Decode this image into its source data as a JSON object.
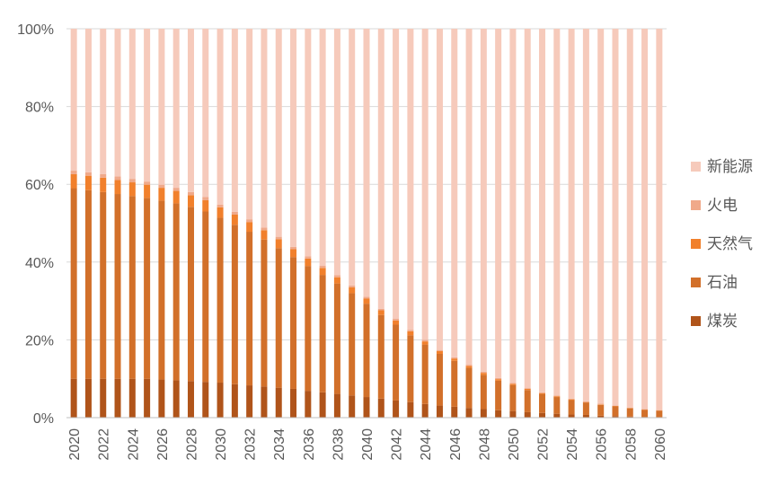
{
  "chart_data": {
    "type": "bar",
    "stacked": true,
    "percent": true,
    "ylim": [
      0,
      100
    ],
    "y_ticks": [
      "0%",
      "20%",
      "40%",
      "60%",
      "80%",
      "100%"
    ],
    "y_tick_values": [
      0,
      20,
      40,
      60,
      80,
      100
    ],
    "grid": true,
    "legend_position": "right",
    "categories": [
      "2020",
      "2021",
      "2022",
      "2023",
      "2024",
      "2025",
      "2026",
      "2027",
      "2028",
      "2029",
      "2030",
      "2031",
      "2032",
      "2033",
      "2034",
      "2035",
      "2036",
      "2037",
      "2038",
      "2039",
      "2040",
      "2041",
      "2042",
      "2043",
      "2044",
      "2045",
      "2046",
      "2047",
      "2048",
      "2049",
      "2050",
      "2051",
      "2052",
      "2053",
      "2054",
      "2055",
      "2056",
      "2057",
      "2058",
      "2059",
      "2060"
    ],
    "x_tick_labels": [
      "2020",
      "2022",
      "2024",
      "2026",
      "2028",
      "2030",
      "2032",
      "2034",
      "2036",
      "2038",
      "2040",
      "2042",
      "2044",
      "2046",
      "2048",
      "2050",
      "2052",
      "2054",
      "2056",
      "2058",
      "2060"
    ],
    "series": [
      {
        "name": "煤炭",
        "color": "#b0541a",
        "values": [
          10,
          10,
          10,
          10,
          10,
          10,
          9.8,
          9.6,
          9.4,
          9.2,
          9,
          8.6,
          8.3,
          8,
          7.7,
          7.4,
          6.9,
          6.5,
          6.1,
          5.7,
          5.3,
          4.9,
          4.4,
          4,
          3.5,
          3.1,
          2.8,
          2.5,
          2.2,
          1.9,
          1.7,
          1.4,
          1.2,
          1,
          0.8,
          0.7,
          0.5,
          0.4,
          0.3,
          0.2,
          0.1
        ]
      },
      {
        "name": "石油",
        "color": "#d2702a",
        "values": [
          49,
          48.5,
          48,
          47.5,
          47,
          46.5,
          46,
          45.5,
          44.8,
          43.8,
          42.4,
          41,
          39.5,
          37.8,
          35.9,
          33.9,
          32.1,
          30.2,
          28.4,
          26.3,
          24,
          21.5,
          19.5,
          17.2,
          15.3,
          13.3,
          11.8,
          10.3,
          8.8,
          7.6,
          6.7,
          5.7,
          4.9,
          4.3,
          3.7,
          3.2,
          2.8,
          2.5,
          2.1,
          1.8,
          1.7
        ]
      },
      {
        "name": "天然气",
        "color": "#f1802c",
        "values": [
          3.6,
          3.7,
          3.7,
          3.6,
          3.5,
          3.4,
          3.3,
          3.2,
          3,
          2.9,
          2.7,
          2.6,
          2.5,
          2.4,
          2.3,
          2,
          1.9,
          1.8,
          1.6,
          1.5,
          1.3,
          1.2,
          1.1,
          1,
          0.8,
          0.7,
          0.6,
          0.5,
          0.5,
          0.4,
          0.3,
          0.3,
          0.2,
          0.2,
          0.2,
          0.1,
          0.1,
          0.1,
          0.1,
          0.1,
          0.1
        ]
      },
      {
        "name": "火电",
        "color": "#f0a98a",
        "values": [
          0.9,
          0.9,
          0.9,
          0.9,
          0.9,
          0.8,
          0.8,
          0.8,
          0.8,
          0.8,
          0.7,
          0.7,
          0.7,
          0.7,
          0.6,
          0.6,
          0.6,
          0.6,
          0.5,
          0.5,
          0.5,
          0.4,
          0.4,
          0.4,
          0.4,
          0.3,
          0.3,
          0.3,
          0.3,
          0.3,
          0.2,
          0.2,
          0.2,
          0.2,
          0.2,
          0.2,
          0.2,
          0.1,
          0.1,
          0.1,
          0.1
        ]
      },
      {
        "name": "新能源",
        "color": "#f6cabb",
        "values": [
          36.5,
          36.9,
          37.4,
          38,
          38.6,
          39.3,
          40.1,
          40.9,
          42,
          43.3,
          45.2,
          47.1,
          49,
          51.1,
          53.5,
          56.1,
          58.5,
          60.9,
          63.4,
          66,
          68.9,
          72,
          74.6,
          77.4,
          80,
          82.6,
          84.5,
          86.4,
          88.2,
          89.8,
          91.1,
          92.4,
          93.5,
          94.3,
          95.1,
          95.8,
          96.4,
          96.9,
          97.4,
          97.8,
          98
        ]
      }
    ]
  }
}
